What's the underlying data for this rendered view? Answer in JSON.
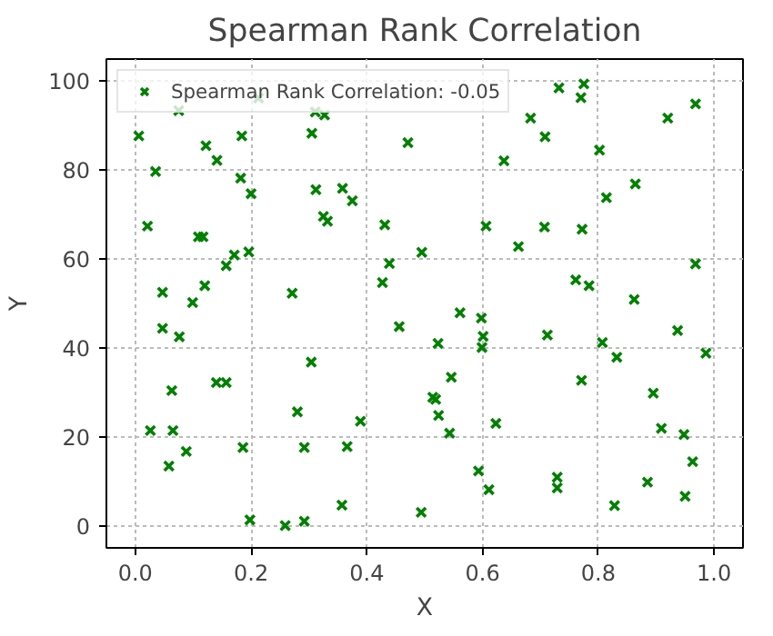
{
  "chart_data": {
    "type": "scatter",
    "title": "Spearman Rank Correlation",
    "xlabel": "X",
    "ylabel": "Y",
    "xlim": [
      -0.05,
      1.05
    ],
    "ylim": [
      -5,
      105
    ],
    "xticks": [
      {
        "value": 0,
        "label": "0.0"
      },
      {
        "value": 0.2,
        "label": "0.2"
      },
      {
        "value": 0.4,
        "label": "0.4"
      },
      {
        "value": 0.6,
        "label": "0.6"
      },
      {
        "value": 0.8,
        "label": "0.8"
      },
      {
        "value": 1,
        "label": "1.0"
      }
    ],
    "yticks": [
      0,
      20,
      40,
      60,
      80,
      100
    ],
    "grid": true,
    "legend": "top left",
    "marker": "cross",
    "series": [
      {
        "name": "Spearman Rank Correlation: -0.05",
        "color": "#008000",
        "x": [
          0.006,
          0.075,
          0.035,
          0.122,
          0.141,
          0.184,
          0.182,
          0.2,
          0.213,
          0.021,
          0.109,
          0.117,
          0.171,
          0.196,
          0.157,
          0.047,
          0.099,
          0.12,
          0.271,
          0.311,
          0.327,
          0.305,
          0.312,
          0.325,
          0.332,
          0.358,
          0.375,
          0.431,
          0.439,
          0.427,
          0.471,
          0.495,
          0.606,
          0.637,
          0.683,
          0.708,
          0.732,
          0.775,
          0.77,
          0.802,
          0.662,
          0.707,
          0.772,
          0.814,
          0.864,
          0.92,
          0.968,
          0.968,
          0.761,
          0.784,
          0.862,
          0.456,
          0.047,
          0.076,
          0.304,
          0.063,
          0.14,
          0.157,
          0.28,
          0.389,
          0.026,
          0.065,
          0.058,
          0.088,
          0.186,
          0.292,
          0.366,
          0.198,
          0.259,
          0.292,
          0.357,
          0.494,
          0.561,
          0.598,
          0.601,
          0.599,
          0.523,
          0.712,
          0.807,
          0.832,
          0.986,
          0.937,
          0.771,
          0.895,
          0.546,
          0.514,
          0.519,
          0.524,
          0.543,
          0.623,
          0.909,
          0.948,
          0.963,
          0.593,
          0.611,
          0.729,
          0.729,
          0.885,
          0.95,
          0.828
        ],
        "values": [
          87.7,
          93.4,
          79.7,
          85.5,
          82.2,
          87.7,
          78.2,
          74.7,
          96.2,
          67.4,
          65,
          65,
          60.9,
          61.6,
          58.5,
          52.5,
          50.2,
          54,
          52.3,
          93.1,
          92.4,
          88.3,
          75.6,
          69.6,
          68.5,
          75.9,
          73.1,
          67.7,
          59,
          54.7,
          86.2,
          61.5,
          67.4,
          82.1,
          91.7,
          87.5,
          98.5,
          99.4,
          96.3,
          84.5,
          62.8,
          67.2,
          66.7,
          73.8,
          76.9,
          91.7,
          94.9,
          58.9,
          55.3,
          54,
          50.9,
          44.8,
          44.4,
          42.5,
          36.8,
          30.4,
          32.2,
          32.2,
          25.6,
          23.5,
          21.4,
          21.4,
          13.4,
          16.7,
          17.6,
          17.6,
          17.8,
          1.3,
          0,
          1,
          4.6,
          3,
          47.9,
          46.7,
          42.6,
          40.1,
          41,
          42.9,
          41.2,
          37.9,
          38.8,
          43.9,
          32.7,
          29.8,
          33.4,
          28.9,
          28.4,
          24.8,
          20.8,
          23,
          21.9,
          20.5,
          14.4,
          12.3,
          8.1,
          10.9,
          8.5,
          9.8,
          6.6,
          4.5
        ]
      }
    ]
  }
}
